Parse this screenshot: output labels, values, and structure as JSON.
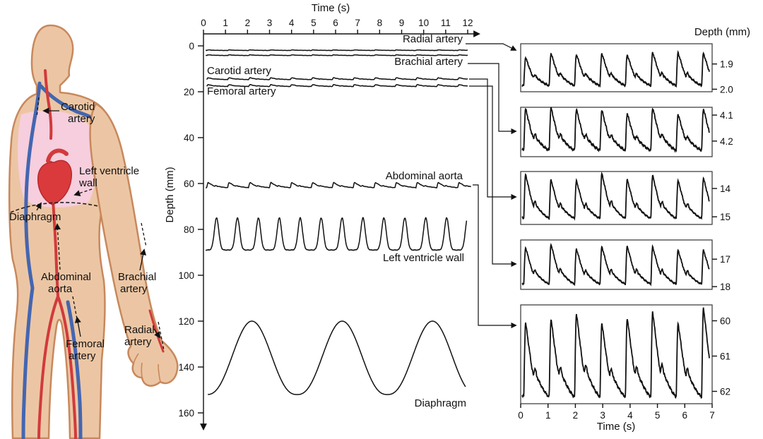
{
  "body_diagram": {
    "labels": {
      "carotid_line1": "Carotid",
      "carotid_line2": "artery",
      "left_ventricle_line1": "Left ventricle",
      "left_ventricle_line2": "wall",
      "diaphragm": "Diaphragm",
      "abdominal_line1": "Abdominal",
      "abdominal_line2": "aorta",
      "brachial_line1": "Brachial",
      "brachial_line2": "artery",
      "femoral_line1": "Femoral",
      "femoral_line2": "artery",
      "radial_line1": "Radial",
      "radial_line2": "artery"
    },
    "colors": {
      "skin": "#ecc6a4",
      "outline": "#c8885c",
      "artery_red": "#d23a3c",
      "vein_blue": "#4466b0",
      "chest_pink": "#f6cedd",
      "heart_red": "#da3a3c"
    }
  },
  "zoom_column": {
    "depth_header": "Depth (mm)",
    "xlabel": "Time (s)",
    "x_ticks": [
      0,
      1,
      2,
      3,
      4,
      5,
      6,
      7
    ]
  },
  "chart_data": [
    {
      "id": "main-motion-chart",
      "type": "line",
      "xlabel": "Time (s)",
      "ylabel": "Depth (mm)",
      "xlim": [
        0,
        12
      ],
      "ylim": [
        0,
        160
      ],
      "y_axis_inverted_depth": true,
      "x_ticks": [
        0,
        1,
        2,
        3,
        4,
        5,
        6,
        7,
        8,
        9,
        10,
        11,
        12
      ],
      "y_ticks": [
        0,
        20,
        40,
        60,
        80,
        100,
        120,
        140,
        160
      ],
      "series": [
        {
          "name": "Radial artery",
          "shape": "arterial_pulse",
          "depth_mm": 2.0,
          "pulse_mm": 0.25,
          "period_s": 0.95,
          "phase_s": 0.15,
          "noise_mm": 0.06,
          "t_start": 0.1,
          "t_end": 12.0
        },
        {
          "name": "Brachial artery",
          "shape": "arterial_pulse",
          "depth_mm": 4.2,
          "pulse_mm": 0.3,
          "period_s": 0.95,
          "phase_s": 0.15,
          "noise_mm": 0.06,
          "t_start": 0.1,
          "t_end": 12.0
        },
        {
          "name": "Carotid artery",
          "shape": "arterial_pulse",
          "depth_mm": 14.7,
          "pulse_mm": 0.8,
          "period_s": 0.95,
          "phase_s": 0.15,
          "noise_mm": 0.08,
          "t_start": 0.15,
          "t_end": 12.0
        },
        {
          "name": "Femoral artery",
          "shape": "arterial_pulse",
          "depth_mm": 17.7,
          "pulse_mm": 0.8,
          "period_s": 0.95,
          "phase_s": 0.15,
          "noise_mm": 0.08,
          "t_start": 0.15,
          "t_end": 12.0
        },
        {
          "name": "Abdominal aorta",
          "shape": "arterial_pulse",
          "depth_mm": 61.8,
          "pulse_mm": 2.2,
          "period_s": 0.95,
          "phase_s": 0.15,
          "noise_mm": 0.1,
          "t_start": 0.1,
          "t_end": 12.15
        },
        {
          "name": "Left ventricle wall",
          "shape": "ventricular",
          "depth_mm": 89.0,
          "pulse_mm": 14.0,
          "period_s": 0.95,
          "phase_s": 0.12,
          "noise_mm": 0.15,
          "t_start": 0.1,
          "t_end": 11.95
        },
        {
          "name": "Diaphragm",
          "shape": "respiratory",
          "depth_mm": 152.0,
          "pulse_mm": 32.0,
          "period_s": 4.1,
          "phase_s": 0.15,
          "noise_mm": 0,
          "t_start": 0.2,
          "t_end": 11.9
        }
      ]
    },
    {
      "id": "zoom-radial-artery",
      "type": "line",
      "linked_structure": "Radial artery",
      "xlim": [
        0,
        7
      ],
      "shape": "arterial_pulse",
      "period_s": 0.95,
      "depth_ticks_mm": [
        "1.9",
        "2.0"
      ],
      "depth_range_mm": [
        1.82,
        2.01
      ],
      "baseline_mm": 1.985,
      "pulse_mm": 0.12,
      "noise_mm": 0.004
    },
    {
      "id": "zoom-brachial-artery",
      "type": "line",
      "linked_structure": "Brachial artery",
      "xlim": [
        0,
        7
      ],
      "shape": "arterial_pulse",
      "period_s": 0.95,
      "depth_ticks_mm": [
        "4.1",
        "4.2"
      ],
      "depth_range_mm": [
        4.07,
        4.26
      ],
      "baseline_mm": 4.235,
      "pulse_mm": 0.15,
      "noise_mm": 0.005
    },
    {
      "id": "zoom-carotid-artery",
      "type": "line",
      "linked_structure": "Carotid artery",
      "xlim": [
        0,
        7
      ],
      "shape": "arterial_pulse",
      "period_s": 0.95,
      "depth_ticks_mm": [
        "14",
        "15"
      ],
      "depth_range_mm": [
        13.4,
        15.27
      ],
      "baseline_mm": 15.05,
      "pulse_mm": 1.45,
      "noise_mm": 0.03
    },
    {
      "id": "zoom-femoral-artery",
      "type": "line",
      "linked_structure": "Femoral artery",
      "xlim": [
        0,
        7
      ],
      "shape": "arterial_pulse",
      "period_s": 0.95,
      "depth_ticks_mm": [
        "17",
        "18"
      ],
      "depth_range_mm": [
        16.3,
        18.1
      ],
      "baseline_mm": 17.9,
      "pulse_mm": 1.35,
      "noise_mm": 0.03
    },
    {
      "id": "zoom-abdominal-aorta",
      "type": "line",
      "linked_structure": "Abdominal aorta",
      "xlim": [
        0,
        7
      ],
      "shape": "arterial_pulse",
      "period_s": 0.95,
      "depth_ticks_mm": [
        "60",
        "61",
        "62"
      ],
      "depth_range_mm": [
        59.55,
        62.35
      ],
      "baseline_mm": 62.15,
      "pulse_mm": 2.3,
      "noise_mm": 0.04
    }
  ]
}
